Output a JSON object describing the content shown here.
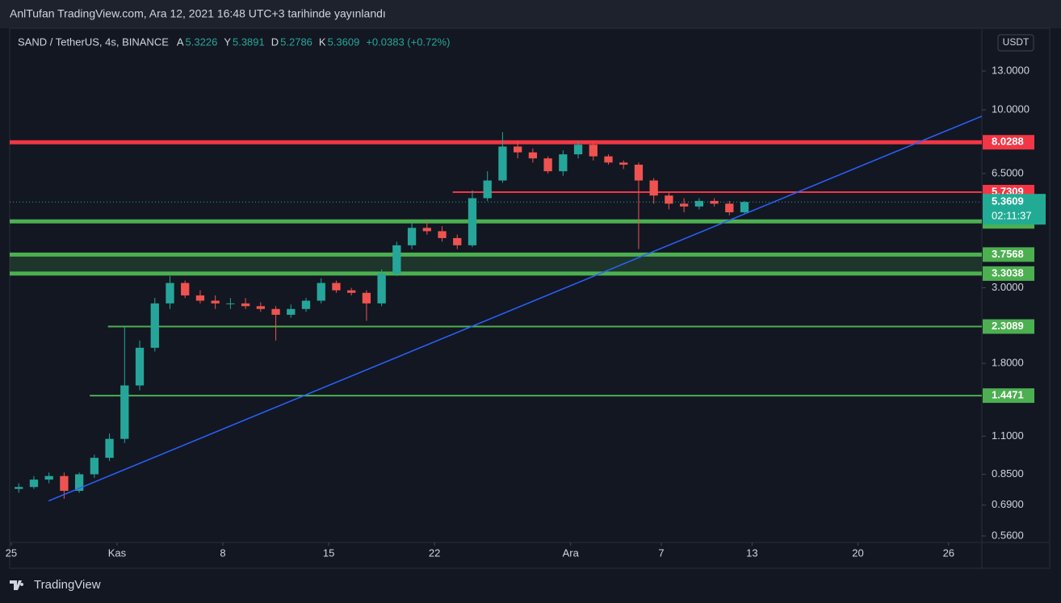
{
  "header": {
    "title": "AnlTufan TradingView.com, Ara 12, 2021 16:48 UTC+3 tarihinde yayınlandı"
  },
  "footer": {
    "brand": "TradingView"
  },
  "chart_data": {
    "type": "candlestick",
    "symbol": "SAND / TetherUS, 4s, BINANCE",
    "ohlc_legend": [
      {
        "label": "A",
        "value": 5.3226
      },
      {
        "label": "Y",
        "value": 5.3891
      },
      {
        "label": "D",
        "value": 5.2786
      },
      {
        "label": "K",
        "value": 5.3609
      }
    ],
    "change": "+0.0383 (+0.72%)",
    "currency": "USDT",
    "log_scale": true,
    "up_color": "#26a69a",
    "down_color": "#ef5350",
    "x": [
      0.5,
      1.5,
      2.5,
      3.5,
      4.5,
      5.5,
      6.5,
      7.5,
      8.5,
      9.5,
      10.5,
      11.5,
      12.5,
      13.5,
      14.5,
      15.5,
      16.5,
      17.5,
      18.5,
      19.5,
      20.5,
      21.5,
      22.5,
      23.5,
      24.5,
      25.5,
      26.5,
      27.5,
      28.5,
      29.5,
      30.5,
      31.5,
      32.5,
      33.5,
      34.5,
      35.5,
      36.5,
      37.5,
      38.5,
      39.5,
      40.5,
      41.5,
      42.5,
      43.5,
      44.5,
      45.5,
      46.5,
      47.5,
      48.5
    ],
    "open": [
      0.77,
      0.78,
      0.82,
      0.84,
      0.76,
      0.85,
      0.95,
      1.08,
      1.55,
      2.0,
      2.7,
      3.1,
      2.85,
      2.75,
      2.7,
      2.7,
      2.65,
      2.6,
      2.5,
      2.6,
      2.75,
      3.1,
      2.95,
      2.9,
      2.7,
      3.3,
      4.0,
      4.5,
      4.4,
      4.2,
      4.0,
      5.5,
      6.2,
      7.8,
      7.5,
      7.2,
      6.6,
      7.4,
      7.9,
      7.3,
      7.0,
      6.9,
      6.2,
      5.6,
      5.3,
      5.2,
      5.4,
      5.3,
      5.0
    ],
    "high": [
      0.8,
      0.84,
      0.86,
      0.86,
      0.86,
      0.97,
      1.12,
      2.3,
      2.1,
      2.8,
      3.25,
      3.15,
      2.95,
      2.85,
      2.8,
      2.8,
      2.72,
      2.65,
      2.68,
      2.8,
      3.2,
      3.15,
      3.0,
      2.95,
      3.4,
      4.1,
      4.7,
      4.7,
      4.55,
      4.3,
      5.8,
      6.6,
      8.6,
      8.1,
      7.7,
      7.3,
      7.6,
      8.1,
      8.0,
      7.4,
      7.1,
      7.0,
      6.3,
      5.7,
      5.5,
      5.5,
      5.5,
      5.4,
      5.4
    ],
    "low": [
      0.75,
      0.77,
      0.8,
      0.72,
      0.75,
      0.83,
      0.93,
      1.05,
      1.5,
      1.95,
      2.6,
      2.8,
      2.7,
      2.6,
      2.6,
      2.6,
      2.55,
      2.1,
      2.45,
      2.55,
      2.7,
      2.9,
      2.85,
      2.4,
      2.65,
      3.25,
      3.9,
      4.3,
      4.1,
      3.9,
      3.95,
      5.4,
      6.1,
      7.2,
      7.0,
      6.5,
      6.4,
      7.2,
      7.1,
      6.9,
      6.7,
      3.9,
      5.3,
      5.1,
      5.0,
      5.1,
      5.2,
      4.9,
      4.95
    ],
    "close": [
      0.78,
      0.82,
      0.84,
      0.76,
      0.85,
      0.95,
      1.08,
      1.55,
      2.0,
      2.7,
      3.1,
      2.85,
      2.75,
      2.7,
      2.7,
      2.65,
      2.6,
      2.5,
      2.6,
      2.75,
      3.1,
      2.95,
      2.9,
      2.7,
      3.3,
      4.0,
      4.5,
      4.4,
      4.2,
      4.0,
      5.5,
      6.2,
      7.8,
      7.5,
      7.2,
      6.6,
      7.4,
      7.9,
      7.3,
      7.0,
      6.9,
      6.2,
      5.6,
      5.3,
      5.2,
      5.4,
      5.3,
      5.0,
      5.36
    ],
    "xlim": [
      -0.1,
      64.2
    ],
    "ylim": [
      0.536,
      17.36
    ],
    "xticks": [
      {
        "value": 0,
        "label": "25"
      },
      {
        "value": 7,
        "label": "Kas"
      },
      {
        "value": 14,
        "label": "8"
      },
      {
        "value": 21,
        "label": "15"
      },
      {
        "value": 28,
        "label": "22"
      },
      {
        "value": 37,
        "label": "Ara"
      },
      {
        "value": 43,
        "label": "7"
      },
      {
        "value": 49,
        "label": "13"
      },
      {
        "value": 56,
        "label": "20"
      },
      {
        "value": 62,
        "label": "26"
      }
    ],
    "yticks": [
      {
        "value": 13,
        "label": "13.0000"
      },
      {
        "value": 10,
        "label": "10.0000"
      },
      {
        "value": 6.5,
        "label": "6.5000"
      },
      {
        "value": 3,
        "label": "3.0000"
      },
      {
        "value": 1.8,
        "label": "1.8000"
      },
      {
        "value": 1.1,
        "label": "1.1000"
      },
      {
        "value": 0.85,
        "label": "0.8500"
      },
      {
        "value": 0.69,
        "label": "0.6900"
      },
      {
        "value": 0.56,
        "label": "0.5600"
      }
    ],
    "levels": [
      {
        "value": 8.0288,
        "color": "#f23645",
        "from": -0.1,
        "width": 5
      },
      {
        "value": 5.7309,
        "color": "#f23645",
        "from": 29.2,
        "width": 2
      },
      {
        "value": 4.7021,
        "color": "#4caf50",
        "from": -0.1,
        "width": 5
      },
      {
        "value": 3.7568,
        "color": "#4caf50",
        "from": -0.1,
        "width": 5
      },
      {
        "value": 3.3038,
        "color": "#4caf50",
        "from": -0.1,
        "width": 5
      },
      {
        "value": 2.3089,
        "color": "#4caf50",
        "from": 6.4,
        "width": 2
      },
      {
        "value": 1.4471,
        "color": "#4caf50",
        "from": 5.2,
        "width": 2
      }
    ],
    "last_price": {
      "value": 5.3609,
      "countdown": "02:11:37",
      "color": "#22ab94"
    },
    "trendline": {
      "x": [
        2.47,
        64.2
      ],
      "y": [
        0.71,
        9.58
      ],
      "color": "#2962ff"
    }
  }
}
